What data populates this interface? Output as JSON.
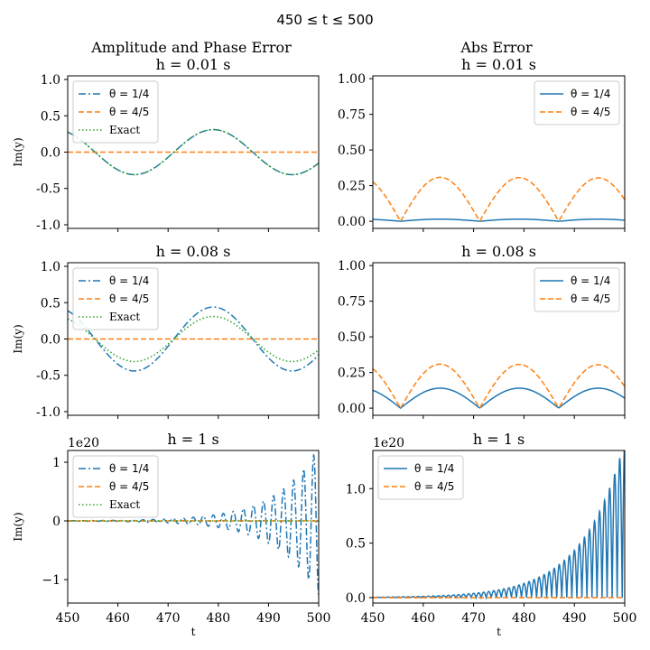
{
  "suptitle": "450 ≤ t ≤ 500",
  "column_titles": [
    "Amplitude and Phase Error",
    "Abs Error"
  ],
  "colors": {
    "theta_1_4": "#1f77b4",
    "theta_4_5": "#ff7f0e",
    "exact": "#2ca02c"
  },
  "chart_data": [
    {
      "type": "line",
      "title": "h = 0.01 s",
      "column_title": "Amplitude and Phase Error",
      "xlabel": "",
      "ylabel": "Im(y)",
      "xlim": [
        450,
        500
      ],
      "ylim": [
        -1.05,
        1.05
      ],
      "yticks": [
        "-1.0",
        "-0.5",
        "0.0",
        "0.5",
        "1.0"
      ],
      "xticks_visible": false,
      "scale_label": "",
      "legend_position": "upper left",
      "series": [
        {
          "name": "θ = 1/4",
          "key": "theta_1_4",
          "style": "dashdot",
          "kind": "sine",
          "amplitude": 0.31,
          "period": 31.4,
          "peak_t": 479.0
        },
        {
          "name": "θ = 4/5",
          "key": "theta_4_5",
          "style": "dashed",
          "kind": "constant",
          "value": 0.0
        },
        {
          "name": "Exact",
          "key": "exact",
          "style": "dotted",
          "kind": "sine",
          "amplitude": 0.31,
          "period": 31.4,
          "peak_t": 479.0
        }
      ]
    },
    {
      "type": "line",
      "title": "h = 0.01 s",
      "column_title": "Abs Error",
      "xlabel": "",
      "ylabel": "",
      "xlim": [
        450,
        500
      ],
      "ylim": [
        -0.05,
        1.02
      ],
      "yticks": [
        "0.00",
        "0.25",
        "0.50",
        "0.75",
        "1.00"
      ],
      "xticks_visible": false,
      "scale_label": "",
      "legend_position": "upper right",
      "series": [
        {
          "name": "θ = 1/4",
          "key": "theta_1_4",
          "style": "solid",
          "kind": "abs_sine",
          "amplitude": 0.015,
          "period": 31.4,
          "zero_t": 455.5
        },
        {
          "name": "θ = 4/5",
          "key": "theta_4_5",
          "style": "dashed",
          "kind": "abs_sine",
          "amplitude": 0.31,
          "decay": 0.02,
          "period": 31.4,
          "zero_t": 455.5
        }
      ]
    },
    {
      "type": "line",
      "title": "h = 0.08 s",
      "column_title": "",
      "xlabel": "",
      "ylabel": "Im(y)",
      "xlim": [
        450,
        500
      ],
      "ylim": [
        -1.05,
        1.05
      ],
      "yticks": [
        "-1.0",
        "-0.5",
        "0.0",
        "0.5",
        "1.0"
      ],
      "xticks_visible": false,
      "scale_label": "",
      "legend_position": "upper left",
      "series": [
        {
          "name": "θ = 1/4",
          "key": "theta_1_4",
          "style": "dashdot",
          "kind": "sine",
          "amplitude": 0.44,
          "period": 31.4,
          "peak_t": 479.0
        },
        {
          "name": "θ = 4/5",
          "key": "theta_4_5",
          "style": "dashed",
          "kind": "constant",
          "value": 0.0
        },
        {
          "name": "Exact",
          "key": "exact",
          "style": "dotted",
          "kind": "sine",
          "amplitude": 0.31,
          "period": 31.4,
          "peak_t": 479.0
        }
      ]
    },
    {
      "type": "line",
      "title": "h = 0.08 s",
      "column_title": "",
      "xlabel": "",
      "ylabel": "",
      "xlim": [
        450,
        500
      ],
      "ylim": [
        -0.05,
        1.02
      ],
      "yticks": [
        "0.00",
        "0.25",
        "0.50",
        "0.75",
        "1.00"
      ],
      "xticks_visible": false,
      "scale_label": "",
      "legend_position": "upper right",
      "series": [
        {
          "name": "θ = 1/4",
          "key": "theta_1_4",
          "style": "solid",
          "kind": "abs_sine",
          "amplitude": 0.14,
          "period": 31.4,
          "zero_t": 455.5
        },
        {
          "name": "θ = 4/5",
          "key": "theta_4_5",
          "style": "dashed",
          "kind": "abs_sine",
          "amplitude": 0.31,
          "decay": 0.02,
          "period": 31.4,
          "zero_t": 455.5
        }
      ]
    },
    {
      "type": "line",
      "title": "h = 1 s",
      "column_title": "",
      "xlabel": "t",
      "ylabel": "Im(y)",
      "xlim": [
        450,
        500
      ],
      "ylim": [
        -1.4,
        1.2
      ],
      "yticks": [
        "−1",
        "0",
        "1"
      ],
      "ytick_values": [
        -1,
        0,
        1
      ],
      "xticks_visible": true,
      "xticks": [
        "450",
        "460",
        "470",
        "480",
        "490",
        "500"
      ],
      "scale_label": "1e20",
      "legend_position": "upper left",
      "series": [
        {
          "name": "θ = 1/4",
          "key": "theta_1_4",
          "style": "dashdot",
          "kind": "growing_osc",
          "peak_value": 1.12,
          "peak_t": 499,
          "growth_per_unit_t": 0.12,
          "period": 2.0
        },
        {
          "name": "θ = 4/5",
          "key": "theta_4_5",
          "style": "dashed",
          "kind": "constant",
          "value": 0.0
        },
        {
          "name": "Exact",
          "key": "exact",
          "style": "dotted",
          "kind": "constant",
          "value": 0.0
        }
      ]
    },
    {
      "type": "line",
      "title": "h = 1 s",
      "column_title": "",
      "xlabel": "t",
      "ylabel": "",
      "xlim": [
        450,
        500
      ],
      "ylim": [
        -0.05,
        1.35
      ],
      "yticks": [
        "0.0",
        "0.5",
        "1.0"
      ],
      "ytick_values": [
        0,
        0.5,
        1.0
      ],
      "xticks_visible": true,
      "xticks": [
        "450",
        "460",
        "470",
        "480",
        "490",
        "500"
      ],
      "scale_label": "1e20",
      "legend_position": "upper left",
      "series": [
        {
          "name": "θ = 1/4",
          "key": "theta_1_4",
          "style": "solid",
          "kind": "growing_abs_osc",
          "peak_value": 1.28,
          "peak_t": 499,
          "growth_per_unit_t": 0.12,
          "period": 2.0
        },
        {
          "name": "θ = 4/5",
          "key": "theta_4_5",
          "style": "dashed",
          "kind": "constant",
          "value": 0.0
        }
      ]
    }
  ]
}
